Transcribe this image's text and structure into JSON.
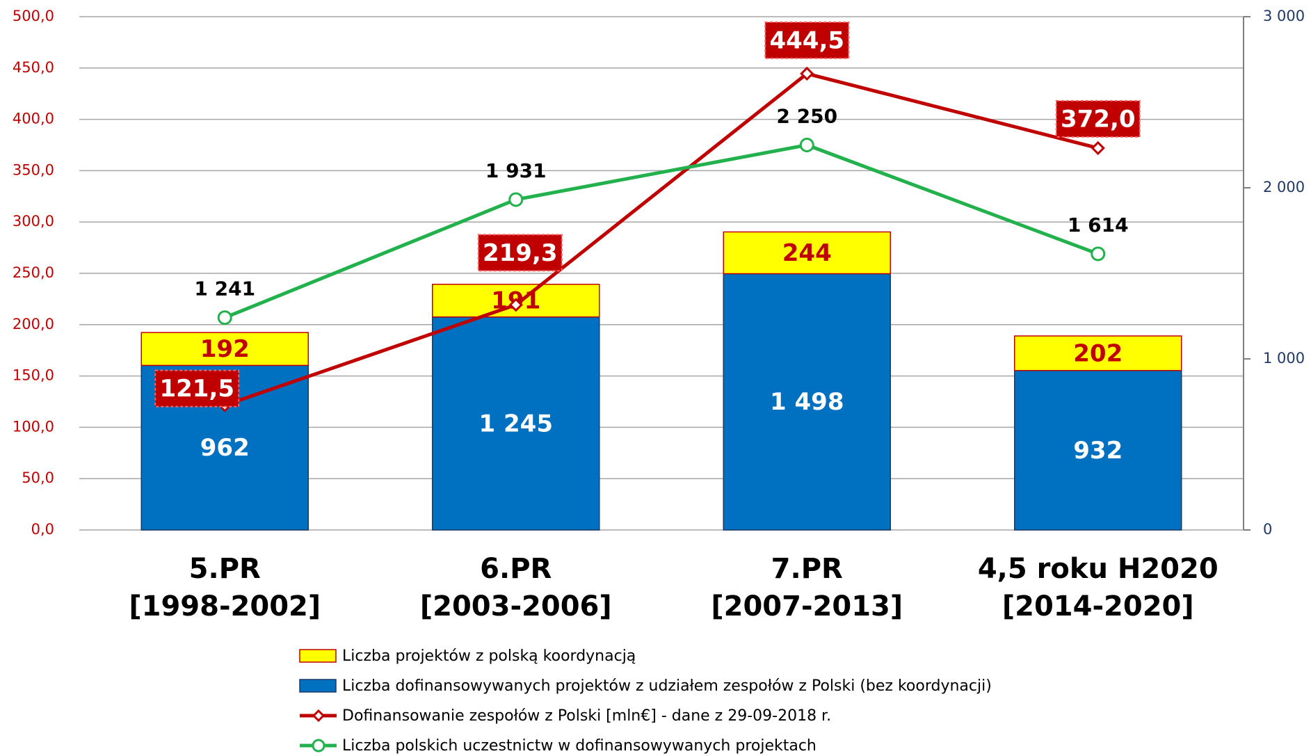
{
  "chart_data": {
    "type": "bar",
    "categories": [
      [
        "5.PR",
        "[1998-2002]"
      ],
      [
        "6.PR",
        "[2003-2006]"
      ],
      [
        "7.PR",
        "[2007-2013]"
      ],
      [
        "4,5 roku H2020",
        "[2014-2020]"
      ]
    ],
    "series": [
      {
        "name": "Liczba projektów z polską koordynacją",
        "type": "bar",
        "axis": "y2",
        "color": "#ffff00",
        "values": [
          192,
          191,
          244,
          202
        ]
      },
      {
        "name": "Liczba dofinansowywanych projektów z udziałem zespołów z Polski (bez koordynacji)",
        "type": "bar",
        "axis": "y2",
        "color": "#0070c0",
        "values": [
          962,
          1245,
          1498,
          932
        ],
        "value_labels": [
          "962",
          "1 245",
          "1 498",
          "932"
        ]
      },
      {
        "name": "Dofinansowanie zespołów z Polski [mln€] - dane z 29-09-2018 r.",
        "type": "line",
        "axis": "y",
        "color": "#c00000",
        "values": [
          121.5,
          219.3,
          444.5,
          372.0
        ],
        "value_labels": [
          "121,5",
          "219,3",
          "444,5",
          "372,0"
        ]
      },
      {
        "name": "Liczba polskich uczestnictw w dofinansowywanych projektach",
        "type": "line",
        "axis": "y2",
        "color": "#22b14c",
        "values": [
          1241,
          1931,
          2250,
          1614
        ],
        "value_labels": [
          "1 241",
          "1 931",
          "2 250",
          "1 614"
        ]
      }
    ],
    "ylim": [
      0,
      500
    ],
    "yticks": [
      {
        "value": 0,
        "label": "0,0"
      },
      {
        "value": 50,
        "label": "50,0"
      },
      {
        "value": 100,
        "label": "100,0"
      },
      {
        "value": 150,
        "label": "150,0"
      },
      {
        "value": 200,
        "label": "200,0"
      },
      {
        "value": 250,
        "label": "250,0"
      },
      {
        "value": 300,
        "label": "300,0"
      },
      {
        "value": 350,
        "label": "350,0"
      },
      {
        "value": 400,
        "label": "400,0"
      },
      {
        "value": 450,
        "label": "450,0"
      },
      {
        "value": 500,
        "label": "500,0"
      }
    ],
    "y2lim": [
      0,
      3000
    ],
    "y2ticks": [
      0,
      {
        "value": 1000,
        "label": "1 000"
      },
      {
        "value": 2000,
        "label": "2 000"
      },
      {
        "value": 3000,
        "label": "3 000"
      }
    ],
    "grid": true,
    "legend": "bottom"
  }
}
